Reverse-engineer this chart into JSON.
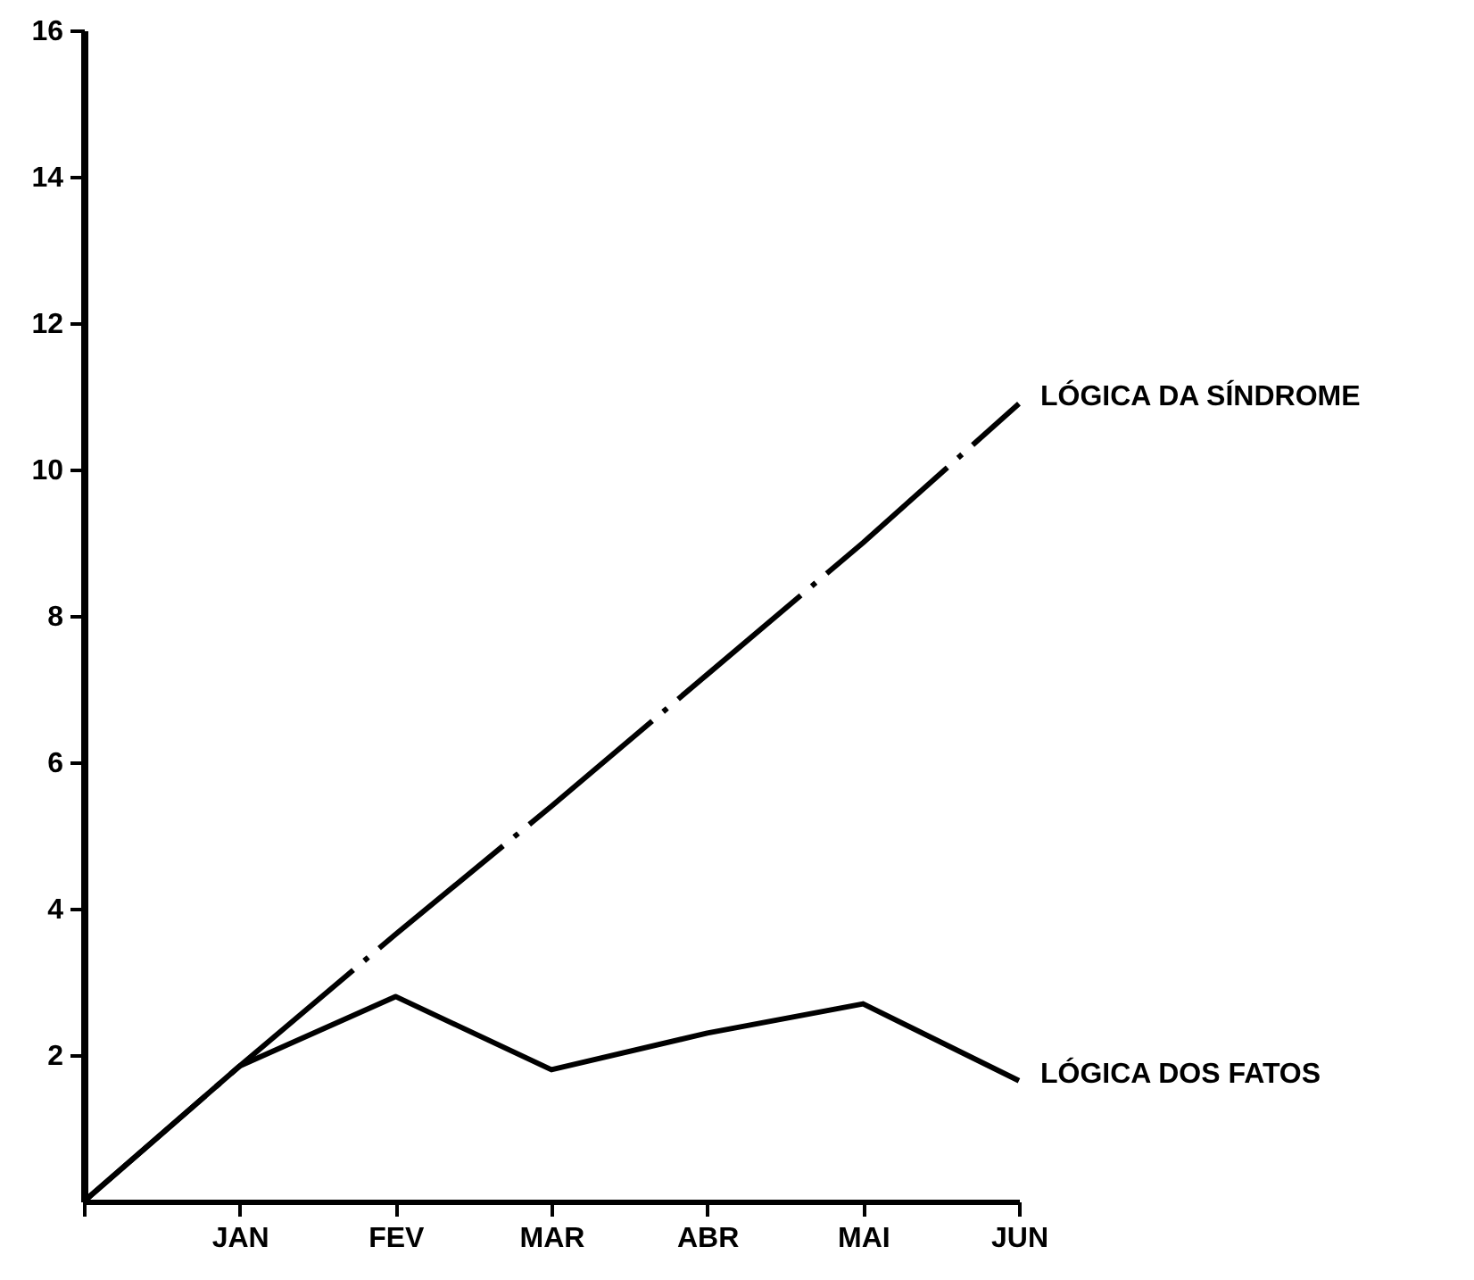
{
  "chart_data": {
    "type": "line",
    "categories": [
      null,
      "JAN",
      "FEV",
      "MAR",
      "ABR",
      "MAI",
      "JUN"
    ],
    "ylim": [
      0,
      16
    ],
    "yticks": [
      2,
      4,
      6,
      8,
      10,
      12,
      14,
      16
    ],
    "legend": false,
    "marker": "none",
    "series": [
      {
        "name": "LÓGICA DA SÍNDROME",
        "color": "#000000",
        "line_style": "dashed",
        "values": [
          0,
          1.85,
          3.65,
          5.4,
          7.2,
          9.0,
          10.9
        ]
      },
      {
        "name": "LÓGICA DOS FATOS",
        "color": "#000000",
        "line_style": "solid",
        "values": [
          0,
          1.85,
          2.8,
          1.8,
          2.3,
          2.7,
          1.65
        ]
      }
    ]
  }
}
